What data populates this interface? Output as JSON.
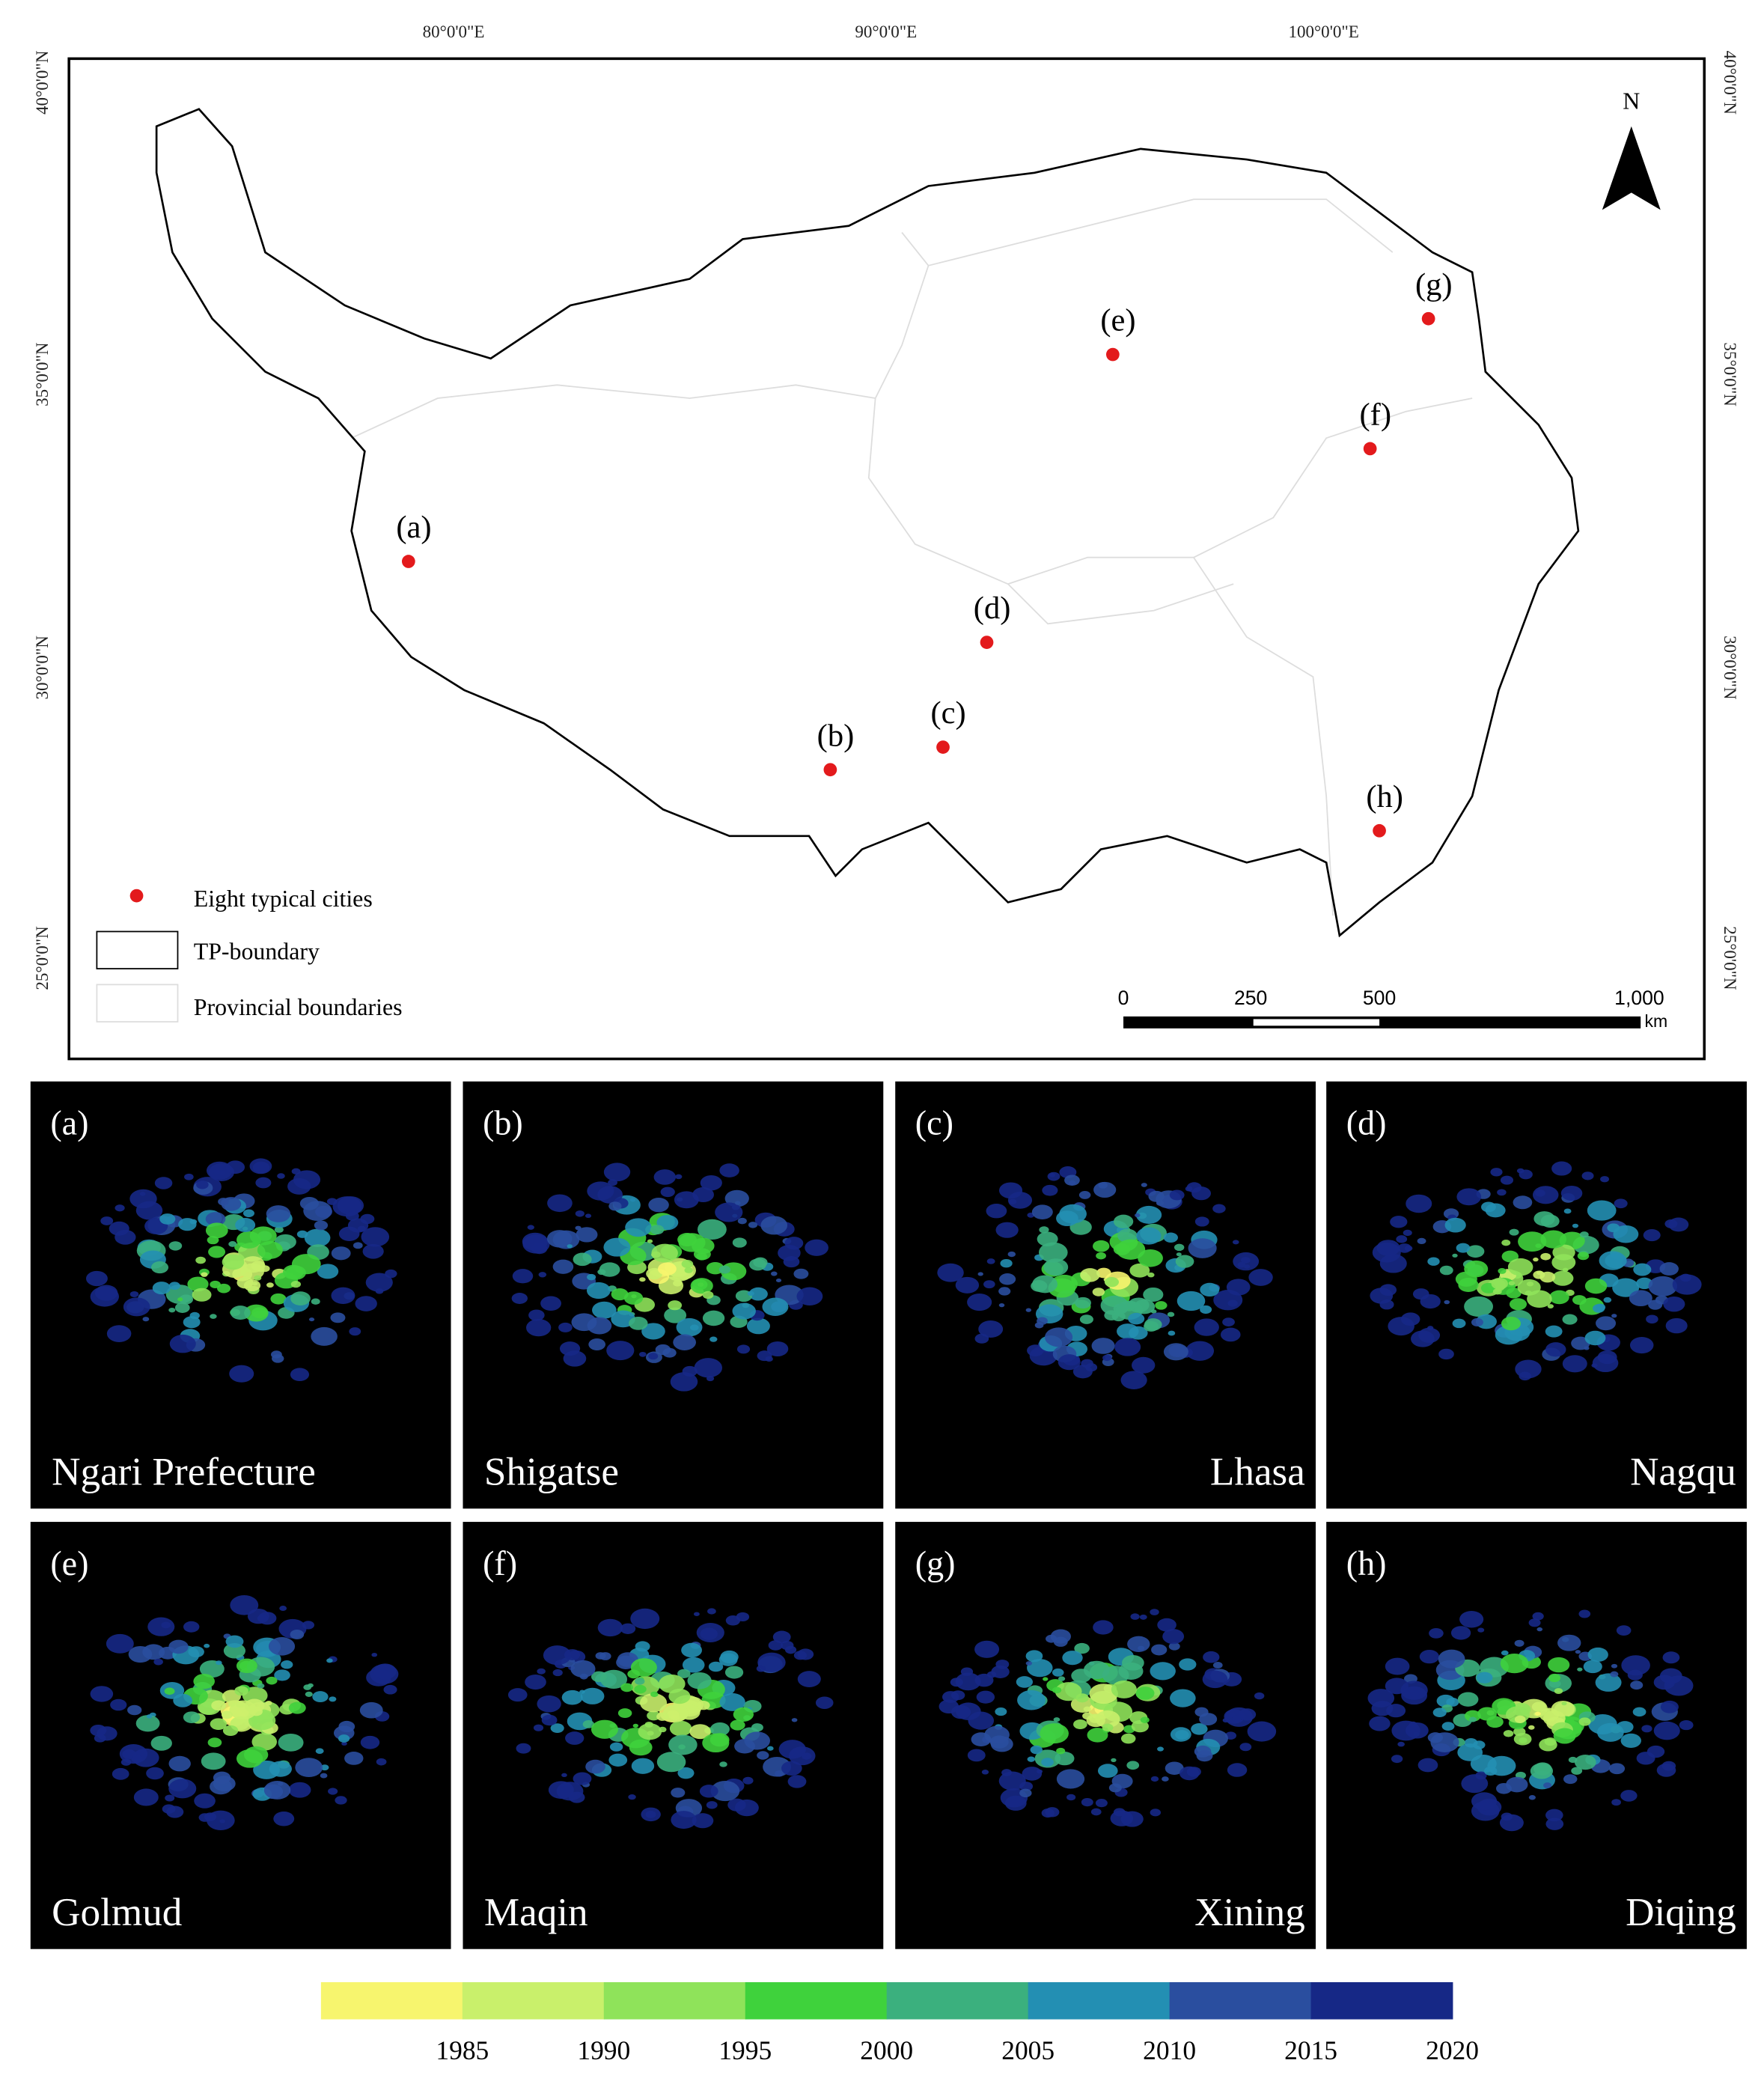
{
  "map": {
    "top_labels": [
      "80°0'0\"E",
      "90°0'0\"E",
      "100°0'0\"E"
    ],
    "side_labels": [
      "40°0'0\"N",
      "35°0'0\"N",
      "30°0'0\"N",
      "25°0'0\"N"
    ],
    "north": "N",
    "cities": [
      "(a)",
      "(b)",
      "(c)",
      "(d)",
      "(e)",
      "(f)",
      "(g)",
      "(h)"
    ],
    "legend": [
      "Eight typical cities",
      "TP-boundary",
      "Provincial boundaries"
    ],
    "scale_bar": {
      "labels": [
        "0",
        "250",
        "500",
        "1,000"
      ],
      "unit": "km"
    }
  },
  "panels": [
    {
      "letter": "(a)",
      "name": "Ngari Prefecture"
    },
    {
      "letter": "(b)",
      "name": "Shigatse"
    },
    {
      "letter": "(c)",
      "name": "Lhasa"
    },
    {
      "letter": "(d)",
      "name": "Nagqu"
    },
    {
      "letter": "(e)",
      "name": "Golmud"
    },
    {
      "letter": "(f)",
      "name": "Maqin"
    },
    {
      "letter": "(g)",
      "name": "Xining"
    },
    {
      "letter": "(h)",
      "name": "Diqing"
    }
  ],
  "colorbar": {
    "colors": [
      "#f7f56e",
      "#c9f06b",
      "#8fe35a",
      "#3fd23c",
      "#3bb07e",
      "#238fb3",
      "#2a4e9f",
      "#162886"
    ],
    "ticks": [
      1985,
      1990,
      1995,
      2000,
      2005,
      2010,
      2015,
      2020
    ]
  }
}
